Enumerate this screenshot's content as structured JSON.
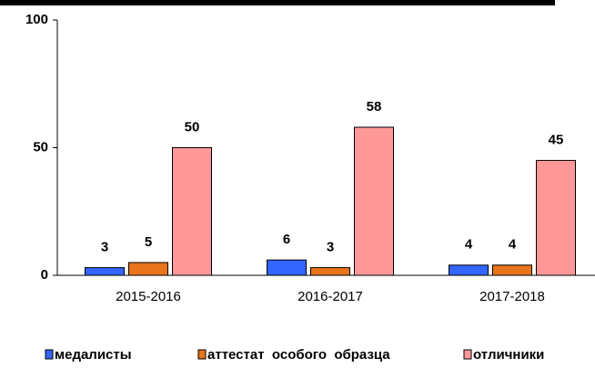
{
  "chart_data": {
    "type": "bar",
    "categories": [
      "2015-2016",
      "2016-2017",
      "2017-2018"
    ],
    "series": [
      {
        "name": "медалисты",
        "color": "#3366ff",
        "values": [
          3,
          6,
          4
        ]
      },
      {
        "name": "аттестат  особого  образца",
        "color": "#e8741c",
        "values": [
          5,
          3,
          4
        ]
      },
      {
        "name": "отличники",
        "color": "#ff9999",
        "values": [
          50,
          58,
          45
        ]
      }
    ],
    "ylim": [
      0,
      100
    ],
    "yticks": [
      0,
      50,
      100
    ]
  }
}
